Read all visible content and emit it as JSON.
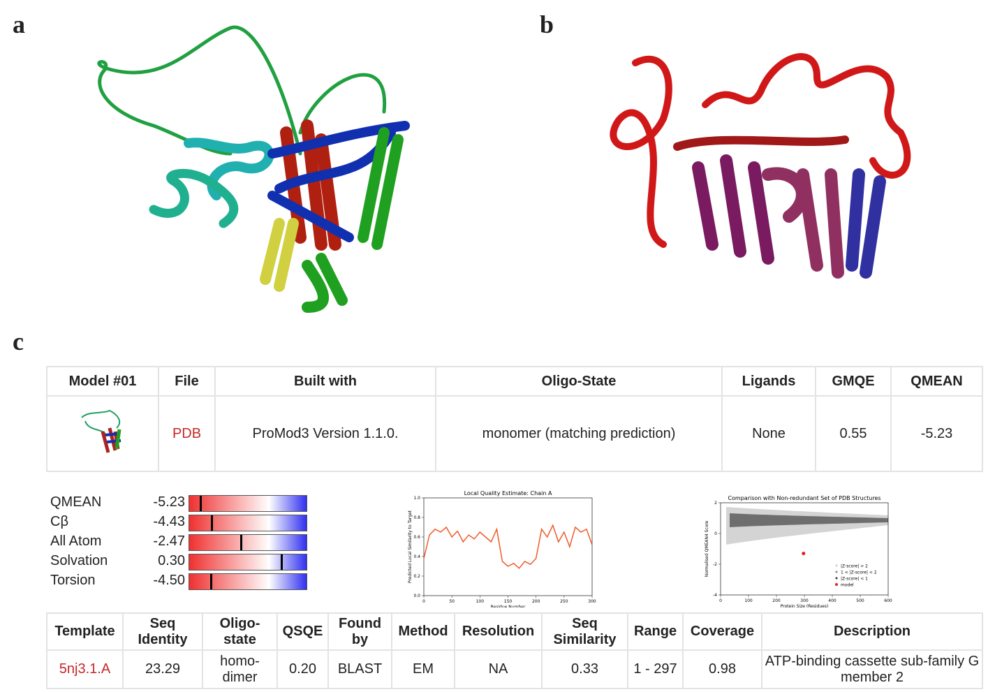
{
  "panels": {
    "a": "a",
    "b": "b",
    "c": "c"
  },
  "model_table": {
    "headers": [
      "Model #01",
      "File",
      "Built with",
      "Oligo-State",
      "Ligands",
      "GMQE",
      "QMEAN"
    ],
    "row": [
      "PDB",
      "ProMod3 Version 1.1.0.",
      "monomer (matching prediction)",
      "None",
      "0.55",
      "-5.23"
    ]
  },
  "quality_scores": {
    "scale": [
      -6,
      2
    ],
    "names": [
      "QMEAN",
      "Cβ",
      "All Atom",
      "Solvation",
      "Torsion"
    ],
    "values": [
      -5.23,
      -4.43,
      -2.47,
      0.3,
      -4.5
    ],
    "value_labels": [
      "-5.23",
      "-4.43",
      "-2.47",
      "0.30",
      "-4.50"
    ]
  },
  "chart_data": [
    {
      "type": "line",
      "title": "Local Quality Estimate: Chain A",
      "xlabel": "Residue Number",
      "ylabel": "Predicted Local Similarity to Target",
      "x": [
        0,
        10,
        20,
        30,
        40,
        50,
        60,
        70,
        80,
        90,
        100,
        110,
        120,
        130,
        140,
        150,
        160,
        170,
        180,
        190,
        200,
        210,
        220,
        230,
        240,
        250,
        260,
        270,
        280,
        290,
        300
      ],
      "series": [
        {
          "name": "Chain A",
          "color": "#f05a28",
          "values": [
            0.38,
            0.62,
            0.68,
            0.65,
            0.7,
            0.6,
            0.66,
            0.55,
            0.62,
            0.58,
            0.65,
            0.6,
            0.55,
            0.68,
            0.35,
            0.3,
            0.33,
            0.28,
            0.35,
            0.32,
            0.38,
            0.68,
            0.6,
            0.72,
            0.55,
            0.65,
            0.5,
            0.7,
            0.65,
            0.68,
            0.52
          ]
        }
      ],
      "xlim": [
        0,
        300
      ],
      "xticks": [
        0,
        50,
        100,
        150,
        200,
        250,
        300
      ],
      "ylim": [
        0,
        1
      ],
      "yticks": [
        {
          "value": 0,
          "label": "0.0"
        },
        {
          "value": 0.2,
          "label": "0.2"
        },
        {
          "value": 0.4,
          "label": "0.4"
        },
        {
          "value": 0.6,
          "label": "0.6"
        },
        {
          "value": 0.8,
          "label": "0.8"
        },
        {
          "value": 1,
          "label": "1.0"
        }
      ]
    },
    {
      "type": "scatter",
      "title": "Comparison with Non-redundant Set of PDB Structures",
      "xlabel": "Protein Size (Residues)",
      "ylabel": "Normalised QMEAN4 Score",
      "legend": [
        {
          "name": "|Z-score| > 2",
          "color": "#cccccc"
        },
        {
          "name": "1 < |Z-score| < 2",
          "color": "#888888"
        },
        {
          "name": "|Z-score| < 1",
          "color": "#333333"
        }
      ],
      "series": [
        {
          "name": "model",
          "color": "#e02020",
          "x": [
            297
          ],
          "values": [
            -1.3
          ]
        }
      ],
      "xlim": [
        0,
        600
      ],
      "xticks": [
        0,
        100,
        200,
        300,
        400,
        500,
        600
      ],
      "ylim": [
        -4,
        2
      ],
      "yticks": [
        -4,
        -2,
        0,
        2
      ]
    }
  ],
  "template_table": {
    "headers": [
      "Template",
      "Seq Identity",
      "Oligo-state",
      "QSQE",
      "Found by",
      "Method",
      "Resolution",
      "Seq Similarity",
      "Range",
      "Coverage",
      "Description"
    ],
    "row": [
      "5nj3.1.A",
      "23.29",
      "homo-dimer",
      "0.20",
      "BLAST",
      "EM",
      "NA",
      "0.33",
      "1 - 297",
      "0.98",
      "ATP-binding cassette sub-family G member 2"
    ]
  }
}
